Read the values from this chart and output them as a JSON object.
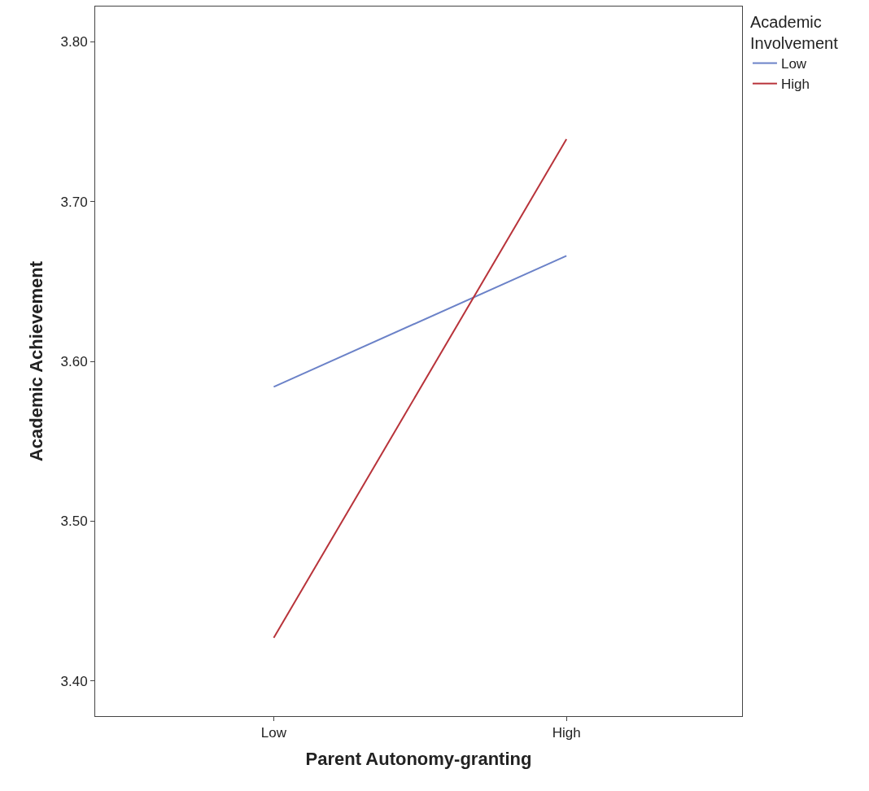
{
  "chart_data": {
    "type": "line",
    "xlabel": "Parent Autonomy-granting",
    "ylabel": "Academic Achievement",
    "legend_title": "Academic Involvement",
    "categories": [
      "Low",
      "High"
    ],
    "series": [
      {
        "name": "Low",
        "color": "#6b82c8",
        "values": [
          3.584,
          3.666
        ]
      },
      {
        "name": "High",
        "color": "#b8333a",
        "values": [
          3.427,
          3.739
        ]
      }
    ],
    "ylim": [
      3.378,
      3.822
    ],
    "yticks": [
      {
        "value": 3.4,
        "label": "3.40"
      },
      {
        "value": 3.5,
        "label": "3.50"
      },
      {
        "value": 3.6,
        "label": "3.60"
      },
      {
        "value": 3.7,
        "label": "3.70"
      },
      {
        "value": 3.8,
        "label": "3.80"
      }
    ],
    "legend": "top right",
    "marker": "none",
    "line_style": "solid"
  }
}
